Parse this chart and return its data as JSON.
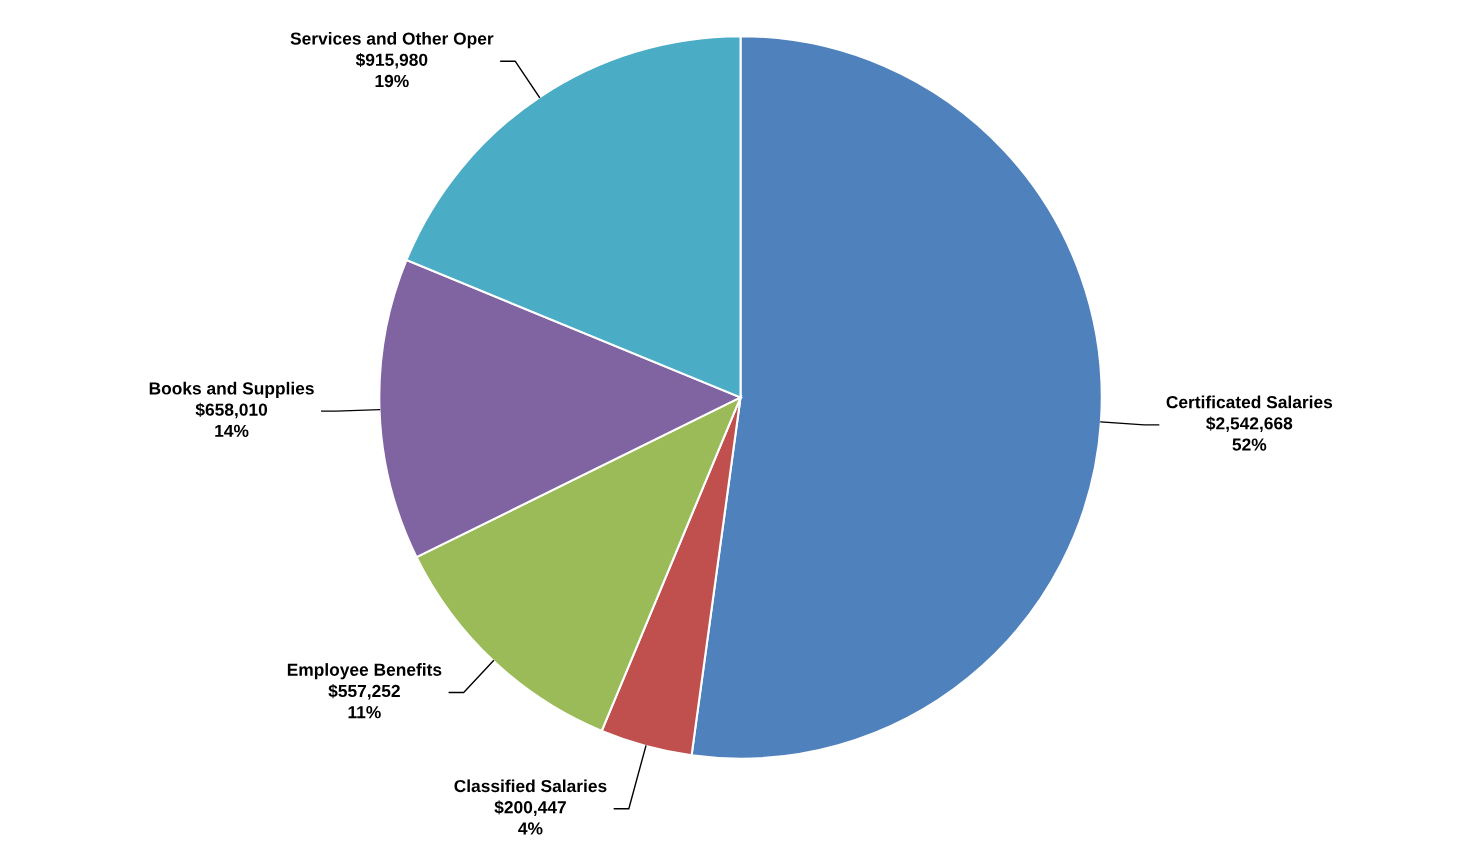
{
  "chart_data": {
    "type": "pie",
    "categories": [
      "Certificated Salaries",
      "Classified Salaries",
      "Employee Benefits",
      "Books and Supplies",
      "Services and Other Oper"
    ],
    "values": [
      2542668,
      200447,
      557252,
      658010,
      915980
    ],
    "value_labels": [
      "$2,542,668\n52%",
      "$200,447\n4%",
      "$557,252\n11%",
      "$658,010\n14%",
      "$915,980\n19%"
    ],
    "colors": [
      "#4f81bd",
      "#c0504d",
      "#9bbb59",
      "#8064a2",
      "#4bacc6"
    ]
  }
}
